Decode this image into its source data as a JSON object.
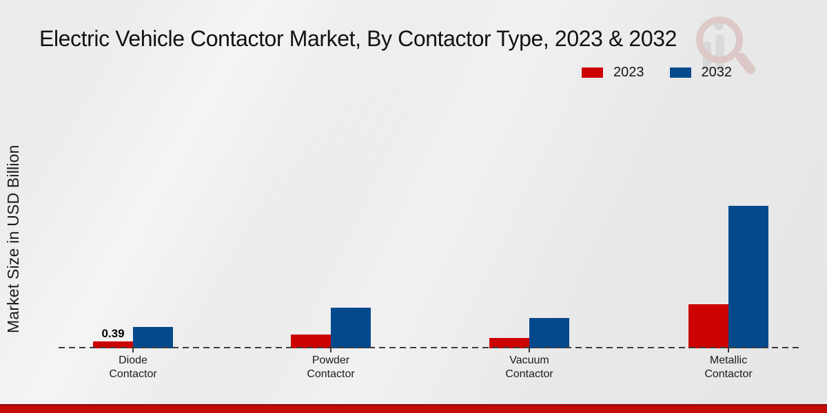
{
  "title": "Electric Vehicle Contactor Market, By Contactor Type, 2023 & 2032",
  "legend": {
    "items": [
      {
        "label": "2023",
        "color": "#cc0101"
      },
      {
        "label": "2032",
        "color": "#04498c"
      }
    ]
  },
  "y_axis": {
    "label": "Market Size in USD Billion"
  },
  "x_axis": {
    "categories": [
      "Diode Contactor",
      "Powder Contactor",
      "Vacuum Contactor",
      "Metallic Contactor"
    ]
  },
  "watermark": {
    "icon": "magnifier-logo"
  },
  "footer": {
    "color": "#c60b0b"
  },
  "chart_data": {
    "type": "bar",
    "categories": [
      "Diode Contactor",
      "Powder Contactor",
      "Vacuum Contactor",
      "Metallic Contactor"
    ],
    "series": [
      {
        "name": "2023",
        "color": "#cc0101",
        "values": [
          0.39,
          0.8,
          0.6,
          2.5
        ]
      },
      {
        "name": "2032",
        "color": "#04498c",
        "values": [
          1.2,
          2.3,
          1.7,
          8.1
        ]
      }
    ],
    "title": "Electric Vehicle Contactor Market, By Contactor Type, 2023 & 2032",
    "xlabel": "",
    "ylabel": "Market Size in USD Billion",
    "ylim": [
      0,
      8.5
    ],
    "grid": false,
    "legend_position": "top-right",
    "baseline_style": "dashed",
    "value_labels": [
      {
        "category": "Diode Contactor",
        "series": "2023",
        "text": "0.39"
      }
    ]
  }
}
